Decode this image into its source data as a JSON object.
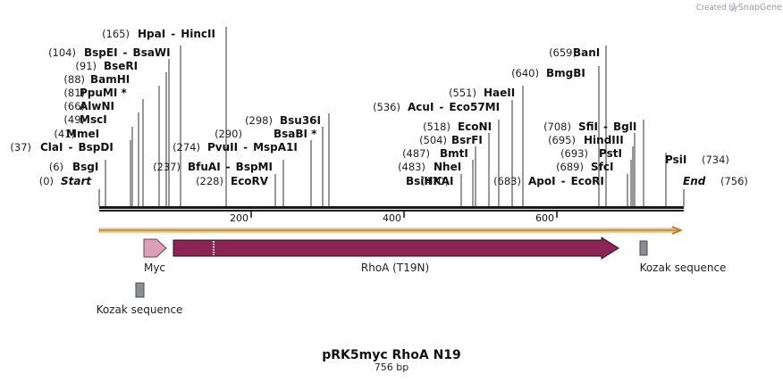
{
  "credit": {
    "prefix": "Created by",
    "brand": "SnapGene"
  },
  "title": "pRK5myc RhoA N19",
  "length_label": "756 bp",
  "sequence_length": 756,
  "colors": {
    "backbone": "#1a1a1a",
    "orf_arrow": "#f1a12f",
    "orf_fill": "#fbe9c8",
    "myc": "#d9a0b6",
    "rhoa": "#8b2553",
    "kozak": "#8a8e93",
    "site_line": "#333333"
  },
  "ticks": [
    {
      "value": 200,
      "label": "200"
    },
    {
      "value": 400,
      "label": "400"
    },
    {
      "value": 600,
      "label": "600"
    }
  ],
  "left_sites": [
    {
      "pos": "(0)",
      "name": "Start",
      "name2": "",
      "star": false,
      "italic": true,
      "bp": 0
    },
    {
      "pos": "(6)",
      "name": "BsgI",
      "name2": "",
      "star": false,
      "italic": false,
      "bp": 6
    },
    {
      "pos": "(37)",
      "name": "ClaI",
      "name2": "BspDI",
      "star": false,
      "italic": false,
      "bp": 37
    },
    {
      "pos": "(41)",
      "name": "MmeI",
      "name2": "",
      "star": false,
      "italic": false,
      "bp": 41
    },
    {
      "pos": "(49)",
      "name": "MscI",
      "name2": "",
      "star": false,
      "italic": false,
      "bp": 49
    },
    {
      "pos": "(66)",
      "name": "AlwNI",
      "name2": "",
      "star": false,
      "italic": false,
      "bp": 66
    },
    {
      "pos": "(81)",
      "name": "PpuMI",
      "name2": "",
      "star": true,
      "italic": false,
      "bp": 81
    },
    {
      "pos": "(88)",
      "name": "BamHI",
      "name2": "",
      "star": false,
      "italic": false,
      "bp": 88
    },
    {
      "pos": "(91)",
      "name": "BseRI",
      "name2": "",
      "star": false,
      "italic": false,
      "bp": 91
    },
    {
      "pos": "(104)",
      "name": "BspEI",
      "name2": "BsaWI",
      "star": false,
      "italic": false,
      "bp": 104
    },
    {
      "pos": "(165)",
      "name": "HpaI",
      "name2": "HincII",
      "star": false,
      "italic": false,
      "bp": 165
    }
  ],
  "mid_sites": [
    {
      "pos": "(228)",
      "name": "EcoRV",
      "name2": "",
      "star": false,
      "italic": false,
      "bp": 228
    },
    {
      "pos": "(237)",
      "name": "BfuAI",
      "name2": "BspMI",
      "star": false,
      "italic": false,
      "bp": 237
    },
    {
      "pos": "(274)",
      "name": "PvuII",
      "name2": "MspA1I",
      "star": false,
      "italic": false,
      "bp": 274
    },
    {
      "pos": "(290)",
      "name": "BsaBI",
      "name2": "",
      "star": true,
      "italic": false,
      "bp": 290
    },
    {
      "pos": "(298)",
      "name": "Bsu36I",
      "name2": "",
      "star": false,
      "italic": false,
      "bp": 298
    },
    {
      "pos": "(470)",
      "name": "BsiHKAI",
      "name2": "",
      "star": false,
      "italic": false,
      "bp": 470
    },
    {
      "pos": "(483)",
      "name": "NheI",
      "name2": "",
      "star": false,
      "italic": false,
      "bp": 483
    },
    {
      "pos": "(487)",
      "name": "BmtI",
      "name2": "",
      "star": false,
      "italic": false,
      "bp": 487
    },
    {
      "pos": "(504)",
      "name": "BsrFI",
      "name2": "",
      "star": false,
      "italic": false,
      "bp": 504
    },
    {
      "pos": "(518)",
      "name": "EcoNI",
      "name2": "",
      "star": false,
      "italic": false,
      "bp": 518
    },
    {
      "pos": "(536)",
      "name": "AcuI",
      "name2": "Eco57MI",
      "star": false,
      "italic": false,
      "bp": 536
    },
    {
      "pos": "(551)",
      "name": "HaeII",
      "name2": "",
      "star": false,
      "italic": false,
      "bp": 551
    },
    {
      "pos": "(640)",
      "name": "BmgBI",
      "name2": "",
      "star": false,
      "italic": false,
      "bp": 640
    },
    {
      "pos": "(659)",
      "name": "BanI",
      "name2": "",
      "star": false,
      "italic": false,
      "bp": 659
    }
  ],
  "right_sites": [
    {
      "pos": "(683)",
      "name": "ApoI",
      "name2": "EcoRI",
      "star": false,
      "italic": false,
      "bp": 683
    },
    {
      "pos": "(689)",
      "name": "SfcI",
      "name2": "",
      "star": false,
      "italic": false,
      "bp": 689
    },
    {
      "pos": "(693)",
      "name": "PstI",
      "name2": "",
      "star": false,
      "italic": false,
      "bp": 693
    },
    {
      "pos": "(695)",
      "name": "HindIII",
      "name2": "",
      "star": false,
      "italic": false,
      "bp": 695
    },
    {
      "pos": "(708)",
      "name": "SfiI",
      "name2": "BglI",
      "star": false,
      "italic": false,
      "bp": 708
    },
    {
      "pos": "(734)",
      "name": "PsiI",
      "name2": "",
      "star": false,
      "italic": false,
      "bp": 734
    },
    {
      "pos": "(756)",
      "name": "End",
      "name2": "",
      "star": false,
      "italic": true,
      "bp": 756
    }
  ],
  "features": [
    {
      "name": "orf-arrow",
      "label": "",
      "start": 0,
      "end": 756,
      "kind": "orf"
    },
    {
      "name": "myc-tag",
      "label": "Myc",
      "start": 57,
      "end": 87,
      "kind": "myc"
    },
    {
      "name": "rhoa-t19n",
      "label": "RhoA (T19N)",
      "start": 96,
      "end": 676,
      "kind": "rhoa"
    },
    {
      "name": "kozak-left",
      "label": "Kozak sequence",
      "start": 48,
      "end": 58,
      "kind": "kozak"
    },
    {
      "name": "kozak-right",
      "label": "Kozak sequence",
      "start": 699,
      "end": 709,
      "kind": "kozak"
    }
  ]
}
